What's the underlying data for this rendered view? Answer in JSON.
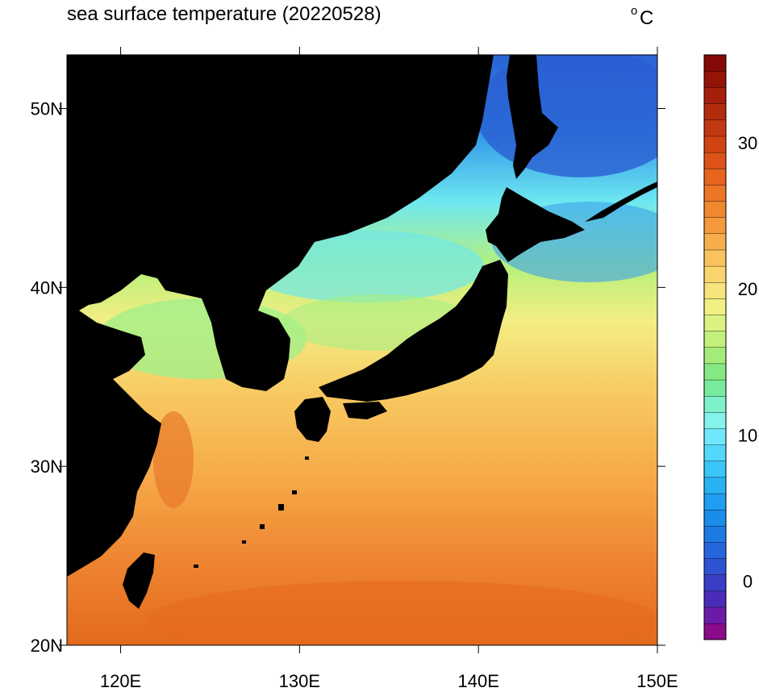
{
  "title": "sea surface temperature (20220528)",
  "units": "°C",
  "units_degree": "o",
  "units_letter": "C",
  "map": {
    "lon_range": [
      117,
      150
    ],
    "lat_range": [
      20,
      53
    ],
    "x_ticks": [
      {
        "value": 120,
        "label": "120E"
      },
      {
        "value": 130,
        "label": "130E"
      },
      {
        "value": 140,
        "label": "140E"
      },
      {
        "value": 150,
        "label": "150E"
      }
    ],
    "y_ticks": [
      {
        "value": 20,
        "label": "20N"
      },
      {
        "value": 30,
        "label": "30N"
      },
      {
        "value": 40,
        "label": "40N"
      },
      {
        "value": 50,
        "label": "50N"
      }
    ],
    "land_color": "#000000"
  },
  "colorbar": {
    "min": -4,
    "max": 36,
    "tick_labels": [
      {
        "value": 0,
        "label": "0"
      },
      {
        "value": 10,
        "label": "10"
      },
      {
        "value": 20,
        "label": "20"
      },
      {
        "value": 30,
        "label": "30"
      }
    ],
    "colors": [
      "#8a0a8a",
      "#6a1ca8",
      "#4a2cb8",
      "#3a3ec6",
      "#2f52d2",
      "#2566dc",
      "#1c7ae4",
      "#1a8cea",
      "#1e9ef0",
      "#28b2f4",
      "#3ac6f8",
      "#52d8fa",
      "#6ee8fa",
      "#86f2ec",
      "#7ef0cc",
      "#78ea9e",
      "#86e882",
      "#a4ec7a",
      "#c2f07c",
      "#dcf280",
      "#f0f084",
      "#f8e47c",
      "#fad46c",
      "#f8c25c",
      "#f6ae4c",
      "#f49a3c",
      "#f08830",
      "#ec7626",
      "#e6641e",
      "#dc5218",
      "#d04414",
      "#c23812",
      "#b42c0e",
      "#a4200c",
      "#941408",
      "#840a06"
    ]
  }
}
